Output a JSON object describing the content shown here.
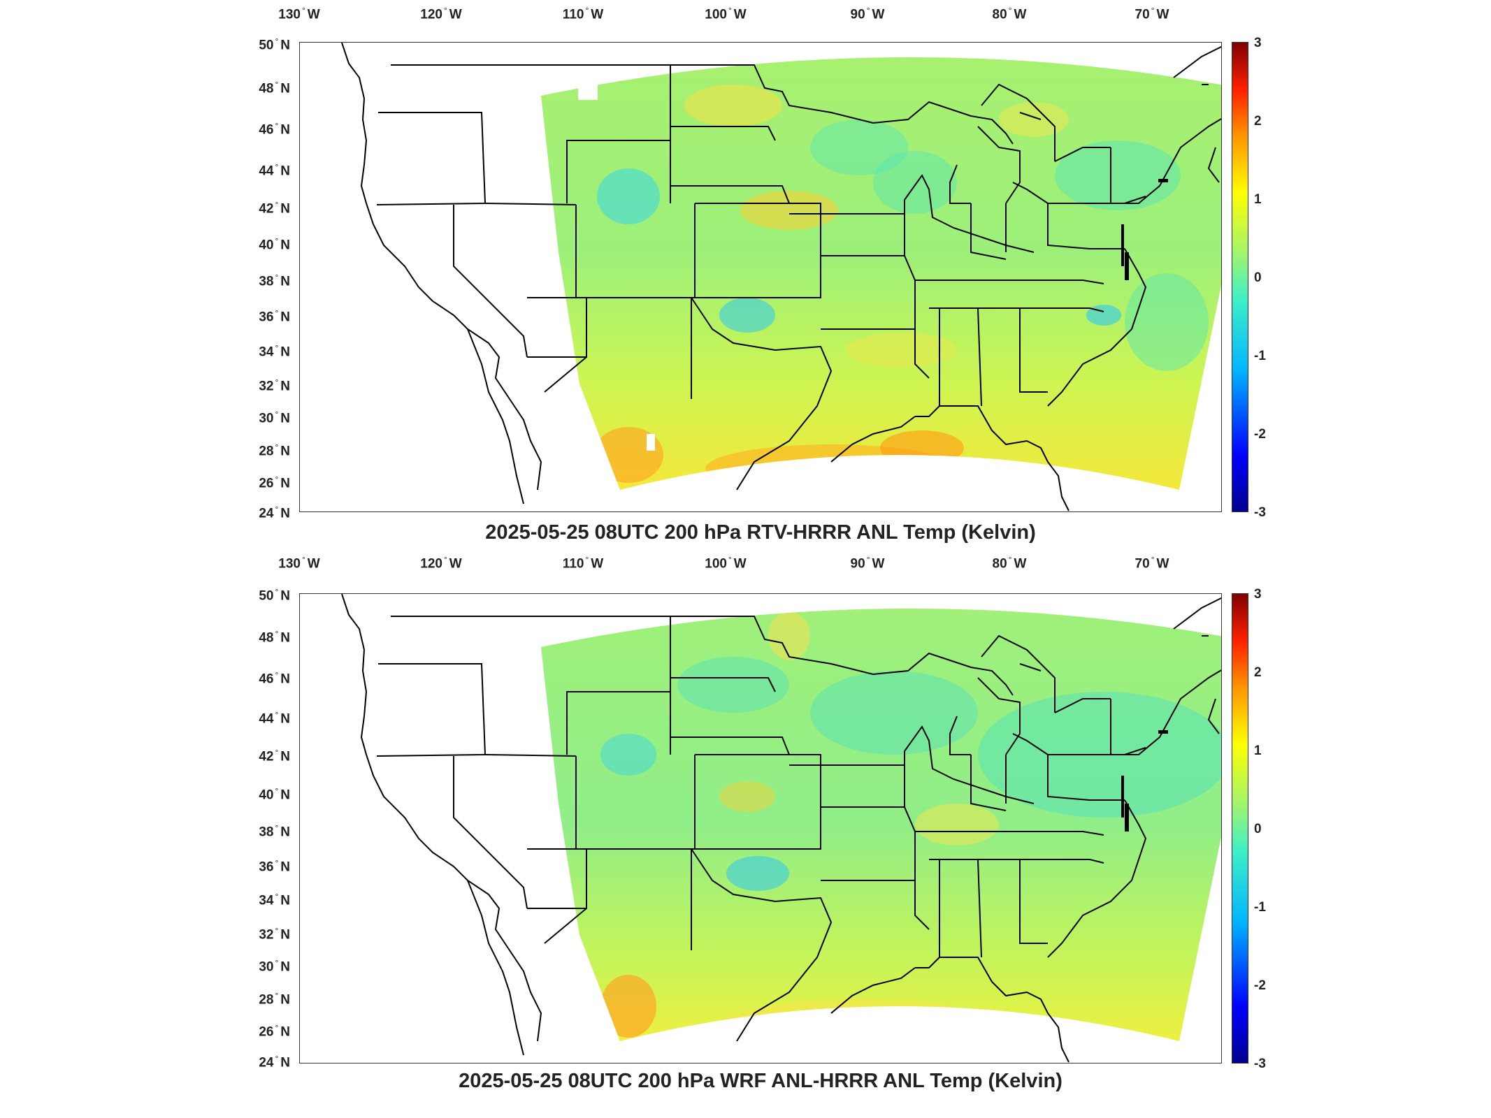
{
  "panels": [
    {
      "title": "2025-05-25 08UTC 200 hPa RTV-HRRR ANL Temp (Kelvin)",
      "colorbar_ticks": [
        "3",
        "2",
        "1",
        "0",
        "-1",
        "-2",
        "-3"
      ]
    },
    {
      "title": "2025-05-25 08UTC 200 hPa WRF ANL-HRRR ANL Temp (Kelvin)",
      "colorbar_ticks": [
        "3",
        "2",
        "1",
        "0",
        "-1",
        "-2",
        "-3"
      ]
    }
  ],
  "lon_ticks": [
    {
      "num": "130",
      "dir": "W"
    },
    {
      "num": "120",
      "dir": "W"
    },
    {
      "num": "110",
      "dir": "W"
    },
    {
      "num": "100",
      "dir": "W"
    },
    {
      "num": "90",
      "dir": "W"
    },
    {
      "num": "80",
      "dir": "W"
    },
    {
      "num": "70",
      "dir": "W"
    }
  ],
  "lat_ticks": [
    {
      "num": "50",
      "dir": "N"
    },
    {
      "num": "48",
      "dir": "N"
    },
    {
      "num": "46",
      "dir": "N"
    },
    {
      "num": "44",
      "dir": "N"
    },
    {
      "num": "42",
      "dir": "N"
    },
    {
      "num": "40",
      "dir": "N"
    },
    {
      "num": "38",
      "dir": "N"
    },
    {
      "num": "36",
      "dir": "N"
    },
    {
      "num": "34",
      "dir": "N"
    },
    {
      "num": "32",
      "dir": "N"
    },
    {
      "num": "30",
      "dir": "N"
    },
    {
      "num": "28",
      "dir": "N"
    },
    {
      "num": "26",
      "dir": "N"
    },
    {
      "num": "24",
      "dir": "N"
    }
  ],
  "colorbar": {
    "min": -3,
    "max": 3,
    "colormap": "jet",
    "colors": [
      "#00008f",
      "#0000ff",
      "#00b4ff",
      "#3cf0c8",
      "#a0f56e",
      "#ffff00",
      "#ff9600",
      "#ff2000",
      "#800000"
    ]
  }
}
